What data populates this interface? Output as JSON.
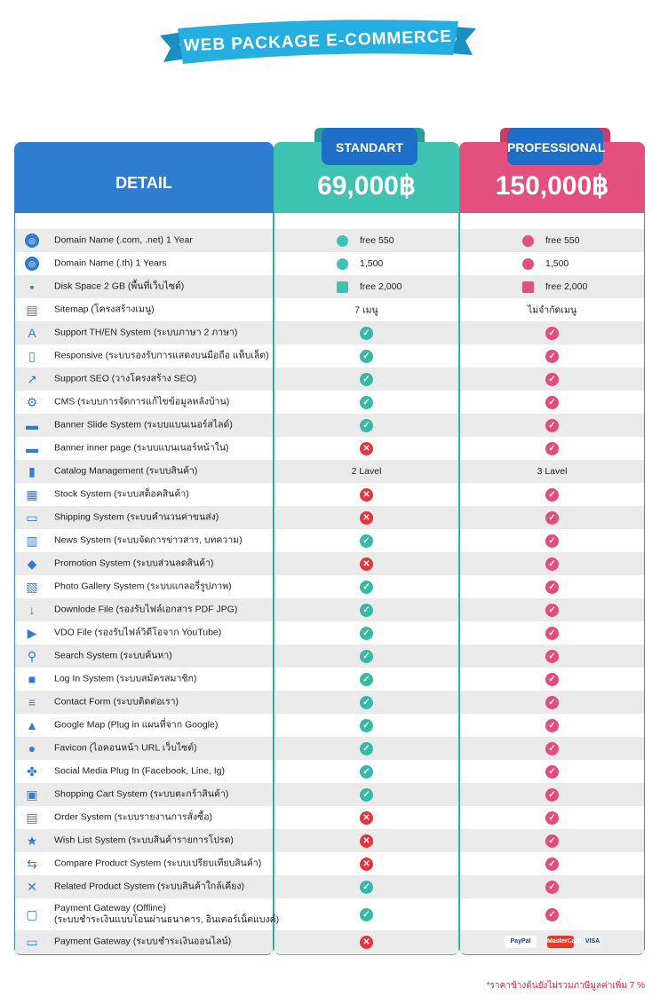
{
  "title": "WEB PACKAGE E-COMMERCE",
  "header": {
    "detail_label": "DETAIL",
    "standard": {
      "name": "STANDART",
      "price": "69,000฿"
    },
    "professional": {
      "name": "PROFESSIONAL",
      "price": "150,000฿"
    }
  },
  "colors": {
    "detail": "#2f7dd0",
    "standard": "#3ec3b2",
    "professional": "#e4507d",
    "tab": "#1e6fc8",
    "cross": "#e8333b"
  },
  "rows": [
    {
      "icon": "globe-icon",
      "label": "Domain Name (.com, .net) 1 Year",
      "std": {
        "type": "text-icon",
        "text": "free 550"
      },
      "pro": {
        "type": "text-icon",
        "text": "free 550"
      }
    },
    {
      "icon": "globe-icon",
      "label": "Domain Name (.th) 1 Years",
      "std": {
        "type": "text-icon",
        "text": "1,500"
      },
      "pro": {
        "type": "text-icon",
        "text": "1,500"
      }
    },
    {
      "icon": "disk-icon",
      "label": "Disk Space 2 GB (พื้นที่เว็บไซต์)",
      "std": {
        "type": "text-disk",
        "text": "free 2,000"
      },
      "pro": {
        "type": "text-disk",
        "text": "free 2,000"
      }
    },
    {
      "icon": "sitemap-icon",
      "label": "Sitemap (โครงสร้างเมนู)",
      "std": {
        "type": "text",
        "text": "7 เมนู"
      },
      "pro": {
        "type": "text",
        "text": "ไม่จำกัดเมนู"
      }
    },
    {
      "icon": "language-icon",
      "label": "Support TH/EN System (ระบบภาษา 2 ภาษา)",
      "std": {
        "type": "check"
      },
      "pro": {
        "type": "check"
      }
    },
    {
      "icon": "mobile-icon",
      "label": "Responsive (ระบบรองรับการแสดงบนมือถือ แท็บเล็ต)",
      "std": {
        "type": "check"
      },
      "pro": {
        "type": "check"
      }
    },
    {
      "icon": "seo-icon",
      "label": "Support SEO (วางโครงสร้าง SEO)",
      "std": {
        "type": "check"
      },
      "pro": {
        "type": "check"
      }
    },
    {
      "icon": "cms-icon",
      "label": "CMS (ระบบการจัดการแก้ไขข้อมูลหลังบ้าน)",
      "std": {
        "type": "check"
      },
      "pro": {
        "type": "check"
      }
    },
    {
      "icon": "banner-icon",
      "label": "Banner Slide System (ระบบแบนเนอร์สไลด์)",
      "std": {
        "type": "check"
      },
      "pro": {
        "type": "check"
      }
    },
    {
      "icon": "banner-icon",
      "label": "Banner inner page (ระบบแบนเนอร์หน้าใน)",
      "std": {
        "type": "cross"
      },
      "pro": {
        "type": "check"
      }
    },
    {
      "icon": "book-icon",
      "label": "Catalog Management (ระบบสินค้า)",
      "std": {
        "type": "text",
        "text": "2 Lavel"
      },
      "pro": {
        "type": "text",
        "text": "3 Lavel"
      }
    },
    {
      "icon": "warehouse-icon",
      "label": "Stock System (ระบบสต็อคสินค้า)",
      "std": {
        "type": "cross"
      },
      "pro": {
        "type": "check"
      }
    },
    {
      "icon": "truck-icon",
      "label": "Shipping System (ระบบคำนวนค่าขนส่ง)",
      "std": {
        "type": "cross"
      },
      "pro": {
        "type": "check"
      }
    },
    {
      "icon": "news-icon",
      "label": "News System (ระบบจัดการข่าวสาร, บทความ)",
      "std": {
        "type": "check"
      },
      "pro": {
        "type": "check"
      }
    },
    {
      "icon": "tag-icon",
      "label": "Promotion System (ระบบส่วนลดสินค้า)",
      "std": {
        "type": "cross"
      },
      "pro": {
        "type": "check"
      }
    },
    {
      "icon": "gallery-icon",
      "label": "Photo Gallery System (ระบบแกลอรี่รูปภาพ)",
      "std": {
        "type": "check"
      },
      "pro": {
        "type": "check"
      }
    },
    {
      "icon": "download-icon",
      "label": "Downlode File (รองรับไฟล์เอกสาร PDF JPG)",
      "std": {
        "type": "check"
      },
      "pro": {
        "type": "check"
      }
    },
    {
      "icon": "video-icon",
      "label": "VDO File (รองรับไฟล์วิดีโอจาก YouTube)",
      "std": {
        "type": "check"
      },
      "pro": {
        "type": "check"
      }
    },
    {
      "icon": "search-icon",
      "label": "Search System (ระบบค้นหา)",
      "std": {
        "type": "check"
      },
      "pro": {
        "type": "check"
      }
    },
    {
      "icon": "lock-icon",
      "label": "Log In System (ระบบสมัครสมาชิก)",
      "std": {
        "type": "check"
      },
      "pro": {
        "type": "check"
      }
    },
    {
      "icon": "form-icon",
      "label": "Contact Form (ระบบติดต่อเรา)",
      "std": {
        "type": "check"
      },
      "pro": {
        "type": "check"
      }
    },
    {
      "icon": "map-pin-icon",
      "label": "Google Map (Plug in แผนที่จาก Google)",
      "std": {
        "type": "check"
      },
      "pro": {
        "type": "check"
      }
    },
    {
      "icon": "favicon-icon",
      "label": "Favicon (ไอคอนหน้า URL เว็บไซต์)",
      "std": {
        "type": "check"
      },
      "pro": {
        "type": "check"
      }
    },
    {
      "icon": "share-icon",
      "label": "Social Media Plug In (Facebook, Line, Ig)",
      "std": {
        "type": "check"
      },
      "pro": {
        "type": "check"
      }
    },
    {
      "icon": "cart-icon",
      "label": "Shopping Cart System (ระบบตะกร้าสินค้า)",
      "std": {
        "type": "check"
      },
      "pro": {
        "type": "check"
      }
    },
    {
      "icon": "order-icon",
      "label": "Order System (ระบบรายงานการสั่งซื้อ)",
      "std": {
        "type": "cross"
      },
      "pro": {
        "type": "check"
      }
    },
    {
      "icon": "star-icon",
      "label": "Wish List System (ระบบสินค้ารายการโปรด)",
      "std": {
        "type": "cross"
      },
      "pro": {
        "type": "check"
      }
    },
    {
      "icon": "compare-icon",
      "label": "Compare Product System (ระบบเปรียบเทียบสินค้า)",
      "std": {
        "type": "cross"
      },
      "pro": {
        "type": "check"
      }
    },
    {
      "icon": "related-icon",
      "label": "Related Product System (ระบบสินค้าใกล้เคียง)",
      "std": {
        "type": "check"
      },
      "pro": {
        "type": "check"
      }
    },
    {
      "icon": "payment-icon",
      "label": "Payment Gateway (Offline)",
      "label2": "(ระบบชำระเงินแบบโอนผ่านธนาคาร, อินเตอร์เน็ตแบงค์)",
      "std": {
        "type": "check"
      },
      "pro": {
        "type": "check"
      }
    },
    {
      "icon": "card-icon",
      "label": "Payment Gateway (ระบบชำระเงินออนไลน์)",
      "std": {
        "type": "cross"
      },
      "pro": {
        "type": "payments",
        "items": [
          "PayPal",
          "MasterCard",
          "VISA"
        ]
      }
    }
  ],
  "footnote": "*ราคาข้างต้นยังไม่รวมภาษีมูลค่าเพิ่ม 7 %"
}
